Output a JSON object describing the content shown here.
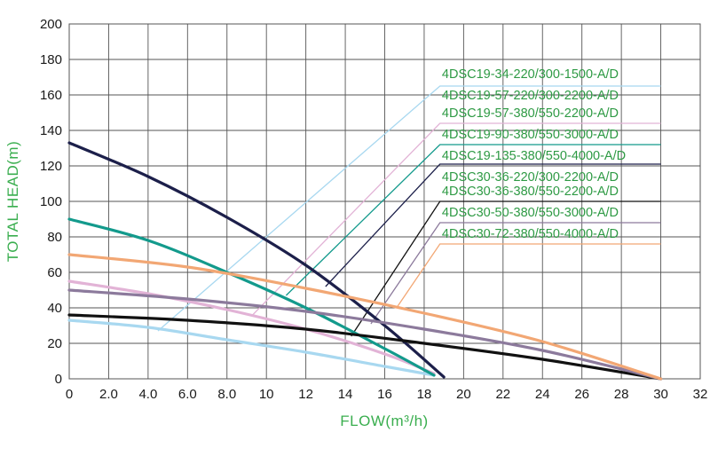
{
  "chart_data": {
    "type": "line",
    "xlabel": "FLOW(m³/h)",
    "ylabel": "TOTAL HEAD(m)",
    "xlim": [
      0,
      32
    ],
    "ylim": [
      0,
      200
    ],
    "x_ticks": [
      "0",
      "2.0",
      "4.0",
      "6.0",
      "8.0",
      "10",
      "12",
      "14",
      "16",
      "18",
      "20",
      "22",
      "24",
      "26",
      "28",
      "30",
      "32"
    ],
    "y_ticks": [
      "0",
      "20",
      "40",
      "60",
      "80",
      "100",
      "120",
      "140",
      "160",
      "180",
      "200"
    ],
    "grid": true,
    "legend_placement": "right",
    "series": [
      {
        "name": "4DSC19-34-220/300-1500-A/D",
        "color": "#a8d8f0",
        "x": [
          0,
          4,
          8,
          12,
          16,
          18.5
        ],
        "y": [
          33,
          29,
          22,
          15,
          7,
          2
        ],
        "leader": [
          [
            4.5,
            27
          ],
          [
            18.8,
            165
          ],
          [
            30,
            165
          ]
        ]
      },
      {
        "name": "4DSC19-57-220/300-2200-A/D",
        "color": "#e2b3d6",
        "x": [
          0,
          4,
          8,
          12,
          16,
          18.5
        ],
        "y": [
          55,
          48,
          39,
          28,
          14,
          3
        ],
        "leader": [
          [
            9.3,
            36
          ],
          [
            18.8,
            144
          ],
          [
            30,
            144
          ]
        ]
      },
      {
        "name": "4DSC19-57-380/550-2200-A/D",
        "color": "#e2b3d6",
        "x": [
          0,
          4,
          8,
          12,
          16,
          18.5
        ],
        "y": [
          55,
          48,
          39,
          28,
          14,
          3
        ],
        "leader": null
      },
      {
        "name": "4DSC19-90-380/550-3000-A/D",
        "color": "#139a8c",
        "x": [
          0,
          4,
          8,
          12,
          16,
          18.5
        ],
        "y": [
          90,
          78,
          60,
          40,
          17,
          2
        ],
        "leader": [
          [
            11,
            47
          ],
          [
            18.8,
            132
          ],
          [
            30,
            132
          ]
        ]
      },
      {
        "name": "4DSC19-135-380/550-4000-A/D",
        "color": "#1c1f4a",
        "x": [
          0,
          4,
          8,
          12,
          16,
          19
        ],
        "y": [
          133,
          114,
          91,
          64,
          30,
          1
        ],
        "leader": [
          [
            13,
            52
          ],
          [
            18.8,
            121
          ],
          [
            30,
            121
          ]
        ]
      },
      {
        "name": "4DSC30-36-220/300-2200-A/D",
        "color": "#111111",
        "x": [
          0,
          6,
          12,
          18,
          24,
          30
        ],
        "y": [
          36,
          33,
          28,
          20,
          11,
          0
        ],
        "leader": [
          [
            14.3,
            24
          ],
          [
            18.8,
            100
          ],
          [
            30,
            100
          ]
        ]
      },
      {
        "name": "4DSC30-36-380/550-2200-A/D",
        "color": "#111111",
        "x": [
          0,
          6,
          12,
          18,
          24,
          30
        ],
        "y": [
          36,
          33,
          28,
          20,
          11,
          0
        ],
        "leader": null
      },
      {
        "name": "4DSC30-50-380/550-3000-A/D",
        "color": "#8c7a9c",
        "x": [
          0,
          6,
          12,
          18,
          24,
          30
        ],
        "y": [
          50,
          45,
          38,
          28,
          16,
          0
        ],
        "leader": [
          [
            15.3,
            31
          ],
          [
            18.8,
            88
          ],
          [
            30,
            88
          ]
        ]
      },
      {
        "name": "4DSC30-72-380/550-4000-A/D",
        "color": "#f2a774",
        "x": [
          0,
          6,
          12,
          18,
          24,
          30
        ],
        "y": [
          70,
          63,
          51,
          37,
          21,
          0
        ],
        "leader": [
          [
            16.6,
            40
          ],
          [
            18.8,
            76
          ],
          [
            30,
            76
          ]
        ]
      }
    ],
    "legend_label_y": [
      172,
      160,
      150,
      138,
      126,
      114,
      106,
      94,
      82
    ]
  }
}
